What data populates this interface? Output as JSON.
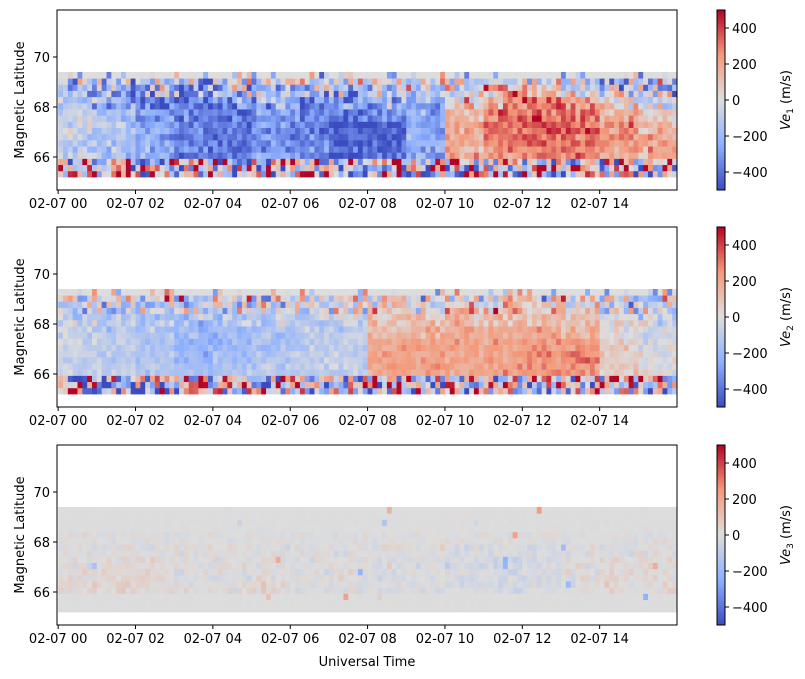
{
  "chart_data": {
    "type": "heatmap",
    "xlabel": "Universal Time",
    "xticks": [
      "02-07 00",
      "02-07 02",
      "02-07 04",
      "02-07 06",
      "02-07 08",
      "02-07 10",
      "02-07 12",
      "02-07 14"
    ],
    "xtick_hours": [
      0,
      2,
      4,
      6,
      8,
      10,
      12,
      14
    ],
    "xlim_hours": [
      -0.03,
      16.0
    ],
    "ylabel": "Magnetic Latitude",
    "yticks": [
      "66",
      "68",
      "70"
    ],
    "ytick_values": [
      66,
      68,
      70
    ],
    "ylim": [
      64.68,
      71.88
    ],
    "data_lat_range": [
      65.2,
      69.4
    ],
    "lat_bands_from_bottom": [
      "65.2-65.7",
      "65.7-66.2",
      "66.2-66.7",
      "66.7-67.2",
      "67.2-67.7",
      "67.7-68.3",
      "68.3-68.8",
      "68.8-69.4"
    ],
    "hour_bins": [
      0,
      1,
      2,
      3,
      4,
      5,
      6,
      7,
      8,
      9,
      10,
      11,
      12,
      13,
      14,
      15
    ],
    "colormap": "coolwarm",
    "colormap_stops": [
      "#3b4cc0",
      "#8db0fe",
      "#dddddd",
      "#f49a7b",
      "#b40426"
    ],
    "clim": [
      -500,
      500
    ],
    "cbar_ticks": [
      "−400",
      "−200",
      "0",
      "200",
      "400"
    ],
    "cbar_tick_values": [
      -400,
      -200,
      0,
      200,
      400
    ],
    "panels": [
      {
        "cbar_label": {
          "base": "Ve",
          "sub": "1",
          "unit": " (m/s)"
        },
        "approx_mean_values_ms": [
          [
            0,
            50,
            0,
            50,
            0,
            0,
            0,
            -100,
            0,
            0,
            50,
            0,
            0,
            50,
            0,
            0
          ],
          [
            -80,
            -150,
            -250,
            -350,
            -400,
            -300,
            -350,
            -450,
            -450,
            -250,
            150,
            250,
            300,
            300,
            200,
            200
          ],
          [
            -80,
            -150,
            -250,
            -380,
            -400,
            -300,
            -380,
            -450,
            -450,
            -250,
            200,
            300,
            350,
            350,
            250,
            200
          ],
          [
            -60,
            -150,
            -250,
            -380,
            -400,
            -300,
            -380,
            -450,
            -450,
            -250,
            200,
            300,
            350,
            350,
            250,
            150
          ],
          [
            -100,
            -150,
            -300,
            -380,
            -400,
            -300,
            -350,
            -400,
            -350,
            -250,
            150,
            300,
            350,
            300,
            150,
            100
          ],
          [
            -150,
            -250,
            -350,
            -400,
            -300,
            -250,
            -350,
            -300,
            -200,
            -200,
            100,
            250,
            300,
            200,
            50,
            -50
          ],
          [
            -200,
            -250,
            -250,
            -300,
            -200,
            -200,
            -250,
            -200,
            -150,
            -100,
            0,
            150,
            100,
            0,
            -100,
            -150
          ],
          [
            -100,
            -100,
            -100,
            -100,
            0,
            0,
            -100,
            0,
            0,
            0,
            0,
            50,
            50,
            0,
            -100,
            -100
          ]
        ],
        "approx_spread_ms": [
          600,
          120,
          110,
          110,
          130,
          200,
          320,
          380
        ]
      },
      {
        "cbar_label": {
          "base": "Ve",
          "sub": "2",
          "unit": " (m/s)"
        },
        "approx_mean_values_ms": [
          [
            0,
            0,
            0,
            0,
            0,
            0,
            0,
            0,
            0,
            0,
            0,
            0,
            0,
            0,
            0,
            0
          ],
          [
            -60,
            -80,
            -120,
            -180,
            -150,
            -100,
            -100,
            -80,
            200,
            220,
            200,
            220,
            250,
            260,
            80,
            -20
          ],
          [
            -60,
            -100,
            -150,
            -220,
            -180,
            -120,
            -100,
            -80,
            220,
            220,
            200,
            220,
            260,
            280,
            80,
            -20
          ],
          [
            -60,
            -100,
            -150,
            -230,
            -200,
            -150,
            -120,
            -100,
            200,
            200,
            200,
            200,
            250,
            250,
            60,
            -20
          ],
          [
            -80,
            -120,
            -150,
            -200,
            -180,
            -150,
            -120,
            -100,
            150,
            180,
            180,
            180,
            200,
            150,
            20,
            -40
          ],
          [
            -100,
            -120,
            -150,
            -150,
            -150,
            -120,
            -100,
            -50,
            100,
            120,
            150,
            150,
            150,
            100,
            -20,
            -60
          ],
          [
            -80,
            -100,
            -100,
            -80,
            -80,
            -60,
            -60,
            0,
            50,
            80,
            100,
            150,
            150,
            60,
            -50,
            -80
          ],
          [
            0,
            0,
            0,
            0,
            0,
            0,
            0,
            0,
            0,
            0,
            0,
            50,
            50,
            0,
            -50,
            0
          ]
        ],
        "approx_spread_ms": [
          600,
          70,
          70,
          70,
          90,
          130,
          260,
          380
        ]
      },
      {
        "cbar_label": {
          "base": "Ve",
          "sub": "3",
          "unit": " (m/s)"
        },
        "approx_mean_values_ms": [
          [
            0,
            0,
            0,
            0,
            0,
            0,
            0,
            0,
            0,
            0,
            0,
            0,
            0,
            0,
            0,
            0
          ],
          [
            20,
            30,
            20,
            10,
            0,
            10,
            0,
            0,
            0,
            -10,
            -20,
            -30,
            -20,
            0,
            20,
            20
          ],
          [
            20,
            30,
            20,
            10,
            0,
            10,
            0,
            0,
            0,
            -10,
            -20,
            -30,
            -20,
            0,
            20,
            20
          ],
          [
            10,
            20,
            10,
            0,
            0,
            0,
            0,
            0,
            0,
            -10,
            -30,
            -40,
            -30,
            0,
            10,
            10
          ],
          [
            0,
            10,
            0,
            0,
            0,
            0,
            0,
            0,
            0,
            0,
            -20,
            -20,
            -20,
            0,
            0,
            0
          ],
          [
            0,
            0,
            0,
            0,
            0,
            0,
            0,
            0,
            0,
            0,
            0,
            0,
            0,
            0,
            0,
            0
          ],
          [
            0,
            0,
            0,
            0,
            0,
            0,
            0,
            0,
            0,
            0,
            0,
            0,
            0,
            0,
            0,
            0
          ],
          [
            0,
            0,
            0,
            0,
            0,
            0,
            0,
            0,
            0,
            0,
            0,
            0,
            0,
            0,
            0,
            0
          ]
        ],
        "approx_spread_ms": [
          5,
          45,
          45,
          45,
          40,
          25,
          10,
          5
        ]
      }
    ]
  }
}
